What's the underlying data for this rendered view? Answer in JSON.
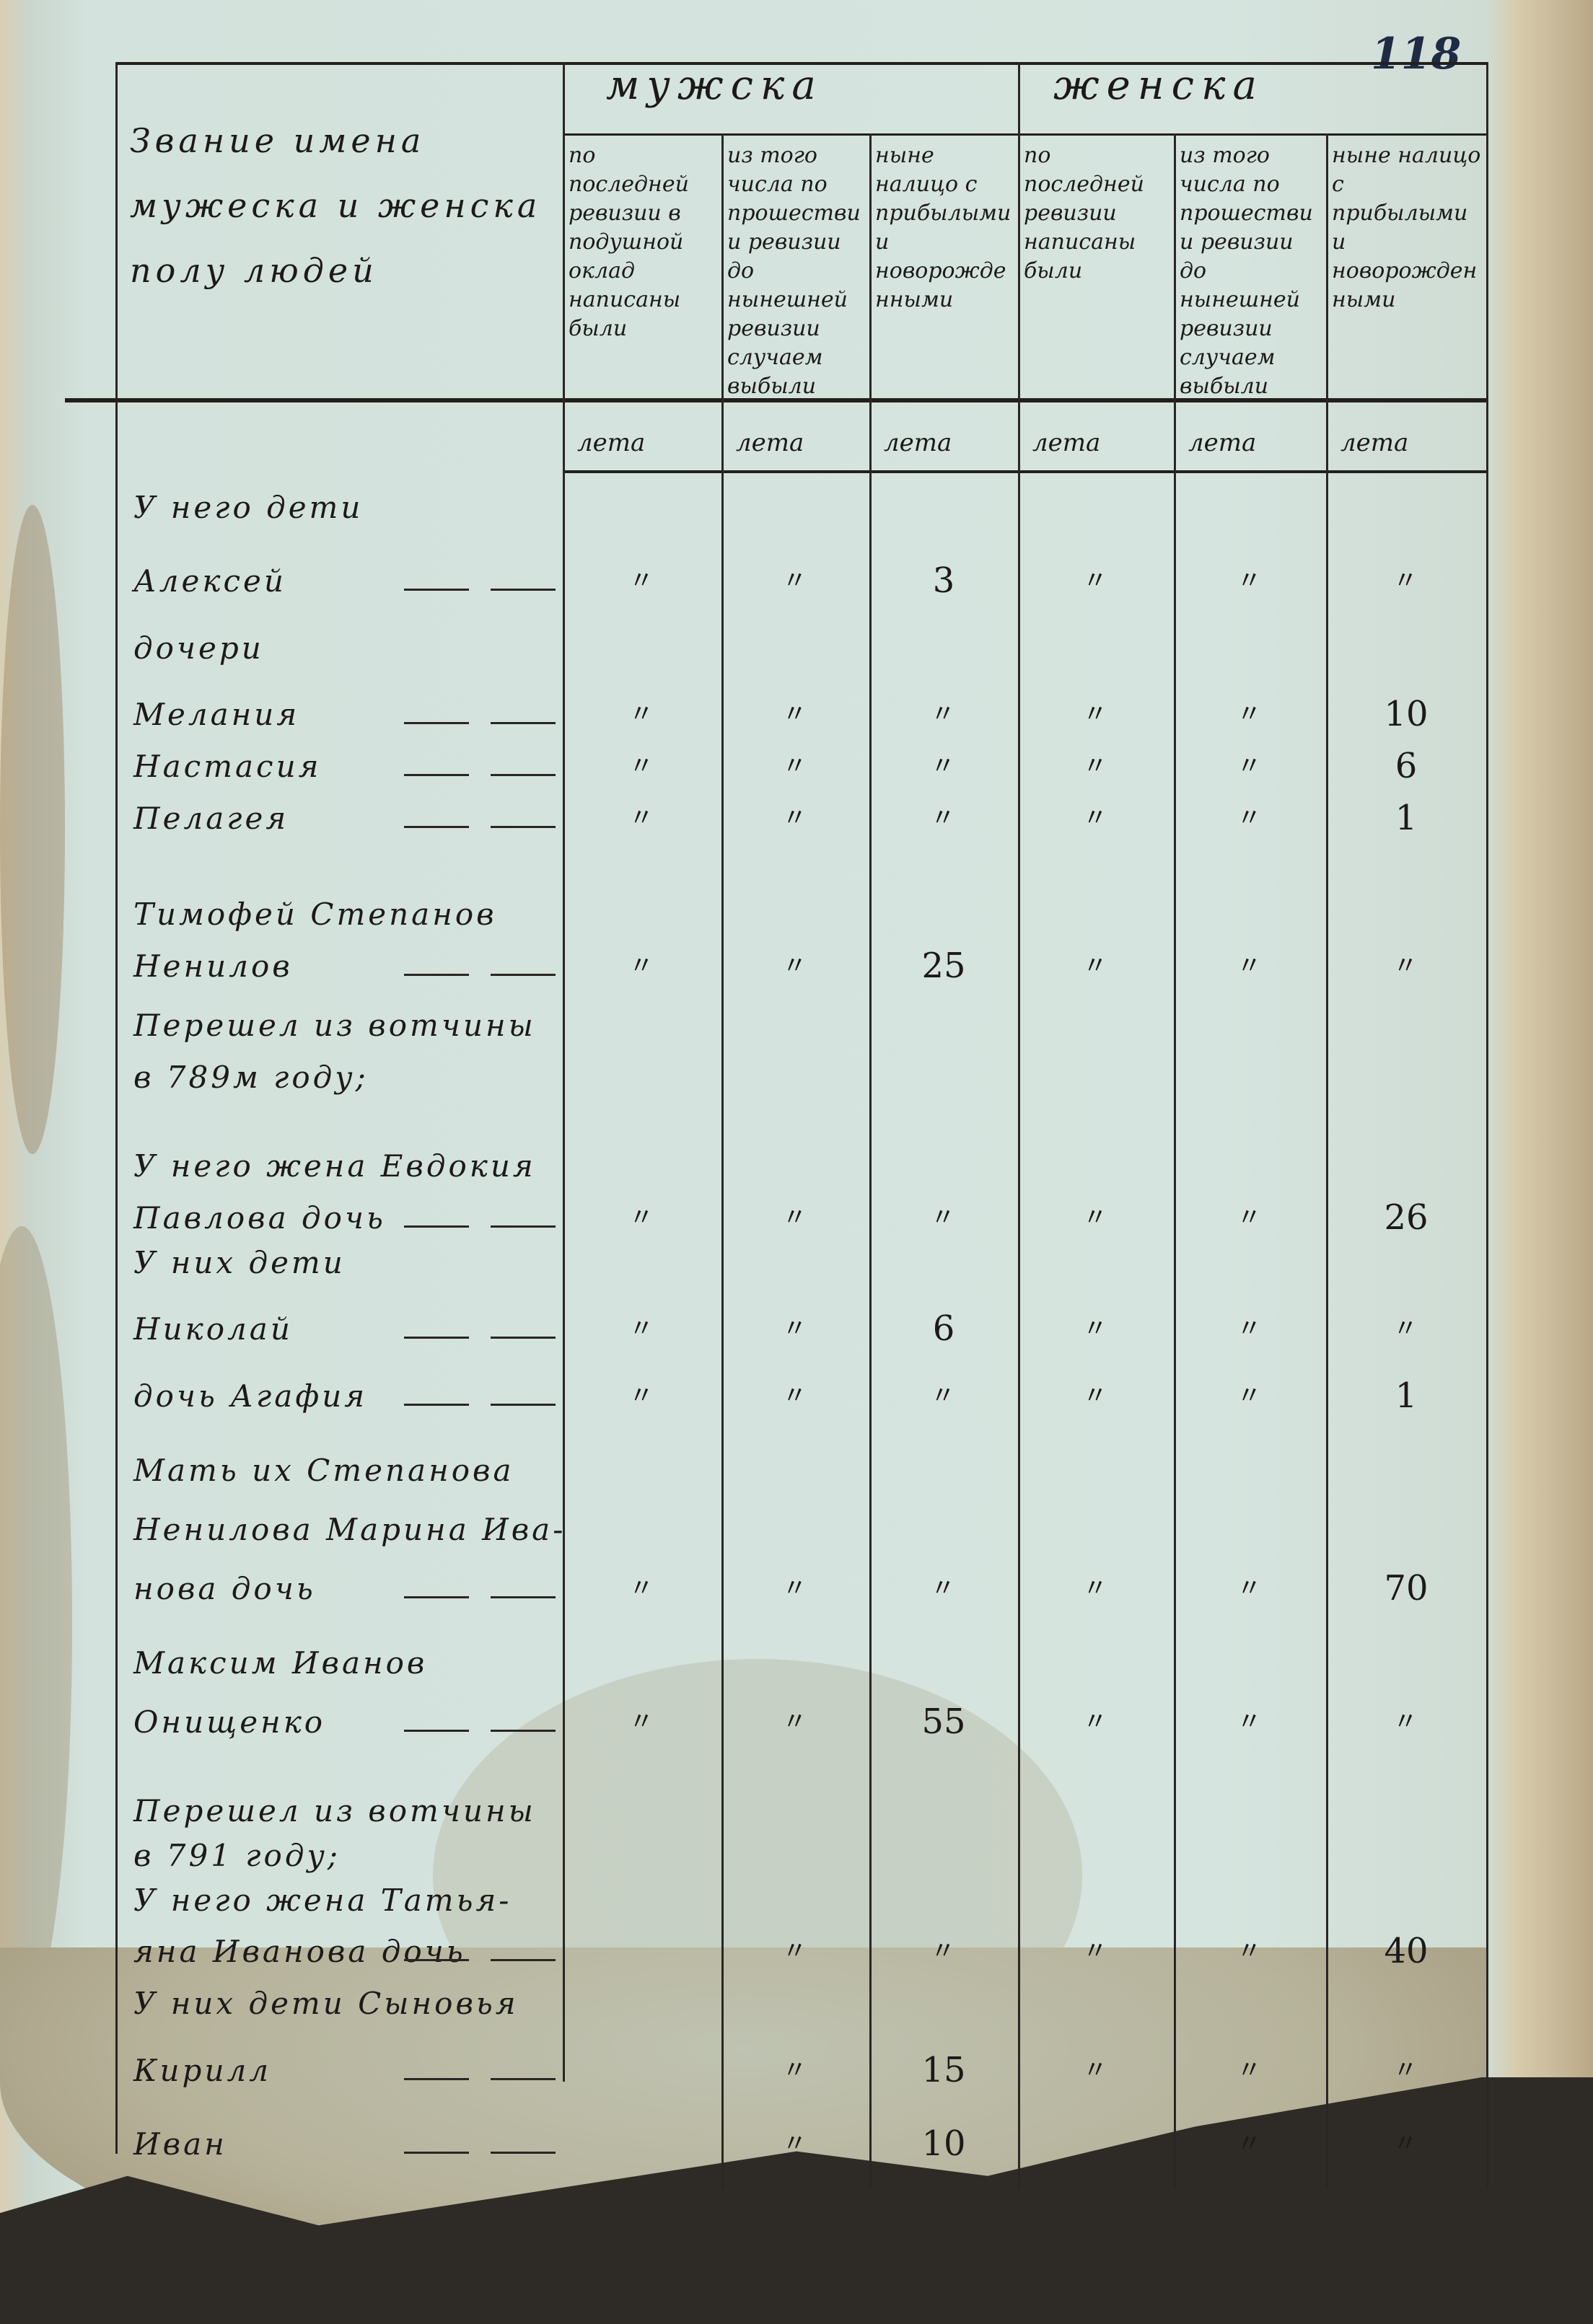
{
  "page_number": "118",
  "header": {
    "name_column": "Звание имена\nмужеска и женска\nполу людей",
    "male_group": "мужска",
    "female_group": "женска",
    "columns": [
      "по последней ревизии в подушной оклад написаны были",
      "из того числа по прошествии ревизии до нынешней ревизии случаем выбыли",
      "ныне налицо с прибылыми и новорожденными",
      "по последней ревизии написаны были",
      "из того числа по прошествии ревизии до нынешней ревизии случаем выбыли",
      "ныне налицо с прибылыми и новорожденными"
    ],
    "unit_label": "лета"
  },
  "ditto": "〃",
  "entries": [
    {
      "text": "У него дети",
      "values": null
    },
    {
      "text": "Алексей",
      "values": [
        "〃",
        "〃",
        "3",
        "〃",
        "〃",
        "〃"
      ]
    },
    {
      "text": "дочери",
      "values": null
    },
    {
      "text": "Мелания",
      "values": [
        "〃",
        "〃",
        "〃",
        "〃",
        "〃",
        "10"
      ]
    },
    {
      "text": "Настасия",
      "values": [
        "〃",
        "〃",
        "〃",
        "〃",
        "〃",
        "6"
      ]
    },
    {
      "text": "Пелагея",
      "values": [
        "〃",
        "〃",
        "〃",
        "〃",
        "〃",
        "1"
      ]
    },
    {
      "text": "Тимофей Степанов",
      "values": null
    },
    {
      "text": "Ненилов",
      "values": [
        "〃",
        "〃",
        "25",
        "〃",
        "〃",
        "〃"
      ]
    },
    {
      "text": "Перешел из вотчины",
      "values": null
    },
    {
      "text": "в 789м году;",
      "values": null
    },
    {
      "text": "У него жена Евдокия",
      "values": null
    },
    {
      "text": "Павлова дочь",
      "values": [
        "〃",
        "〃",
        "〃",
        "〃",
        "〃",
        "26"
      ]
    },
    {
      "text": "У них дети",
      "values": null
    },
    {
      "text": "Николай",
      "values": [
        "〃",
        "〃",
        "6",
        "〃",
        "〃",
        "〃"
      ]
    },
    {
      "text": "дочь Агафия",
      "values": [
        "〃",
        "〃",
        "〃",
        "〃",
        "〃",
        "1"
      ]
    },
    {
      "text": "Мать их Степанова",
      "values": null
    },
    {
      "text": "Ненилова Марина Ива-",
      "values": null
    },
    {
      "text": "нова дочь",
      "values": [
        "〃",
        "〃",
        "〃",
        "〃",
        "〃",
        "70"
      ]
    },
    {
      "text": "Максим Иванов",
      "values": null
    },
    {
      "text": "Онищенко",
      "values": [
        "〃",
        "〃",
        "55",
        "〃",
        "〃",
        "〃"
      ]
    },
    {
      "text": "Перешел из вотчины",
      "values": null
    },
    {
      "text": "в 791 году;",
      "values": null
    },
    {
      "text": "У него жена Татья-",
      "values": null
    },
    {
      "text": "яна Иванова дочь",
      "values": [
        "",
        "〃",
        "〃",
        "〃",
        "〃",
        "40"
      ]
    },
    {
      "text": "У них дети Сыновья",
      "values": null
    },
    {
      "text": "Кирилл",
      "values": [
        "",
        "〃",
        "15",
        "〃",
        "〃",
        "〃"
      ]
    },
    {
      "text": "Иван",
      "values": [
        "",
        "〃",
        "10",
        "",
        "〃",
        "〃"
      ]
    }
  ]
}
